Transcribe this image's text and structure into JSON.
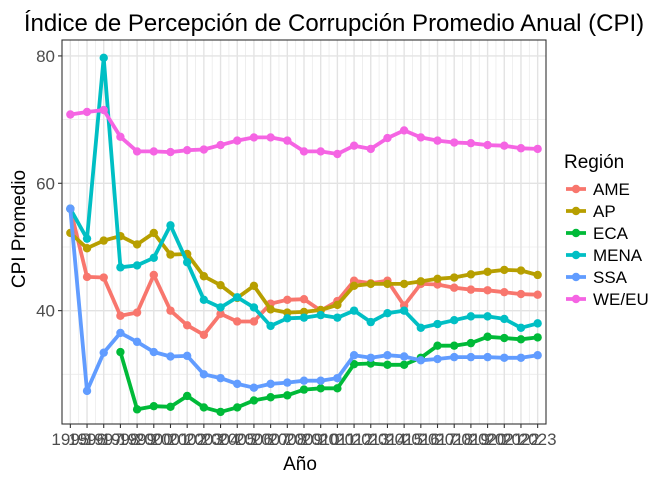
{
  "chart_data": {
    "type": "line",
    "title": "Índice de Percepción de Corrupción Promedio Anual (CPI)",
    "xlabel": "Año",
    "ylabel": "CPI Promedio",
    "legend_title": "Región",
    "legend_position": "right",
    "grid": true,
    "xlim": [
      1994.5,
      2023.5
    ],
    "ylim": [
      22.2,
      82.5
    ],
    "x": [
      1995,
      1996,
      1997,
      1998,
      1999,
      2000,
      2001,
      2002,
      2003,
      2004,
      2005,
      2006,
      2007,
      2008,
      2009,
      2010,
      2011,
      2012,
      2013,
      2014,
      2015,
      2016,
      2017,
      2018,
      2019,
      2020,
      2021,
      2022,
      2023
    ],
    "x_tick_labels": [
      "1995",
      "1996",
      "1997",
      "1998",
      "1999",
      "2000",
      "2001",
      "2002",
      "2003",
      "2004",
      "2005",
      "2006",
      "2007",
      "2008",
      "2009",
      "2010",
      "2011",
      "2012",
      "2013",
      "2014",
      "2015",
      "2016",
      "2017",
      "2018",
      "2019",
      "2020",
      "2021",
      "2022",
      "2023"
    ],
    "y_ticks": [
      40,
      60,
      80
    ],
    "y_tick_labels": [
      "40",
      "60",
      "80"
    ],
    "series": [
      {
        "name": "AME",
        "color": "#F8766D",
        "values": [
          56.0,
          45.3,
          45.2,
          39.2,
          39.7,
          45.6,
          40.0,
          37.7,
          36.2,
          39.5,
          38.3,
          38.3,
          41.1,
          41.7,
          41.8,
          40.0,
          41.5,
          44.7,
          44.3,
          44.7,
          40.8,
          44.2,
          44.1,
          43.6,
          43.3,
          43.2,
          42.9,
          42.6,
          42.5
        ]
      },
      {
        "name": "AP",
        "color": "#B79F00",
        "values": [
          52.2,
          49.8,
          51.0,
          51.7,
          50.4,
          52.2,
          48.8,
          48.9,
          45.4,
          44.0,
          42.0,
          43.9,
          40.2,
          39.7,
          39.8,
          40.1,
          40.9,
          43.9,
          44.2,
          44.2,
          44.2,
          44.6,
          45.0,
          45.2,
          45.7,
          46.1,
          46.4,
          46.3,
          45.6
        ]
      },
      {
        "name": "ECA",
        "color": "#00BA38",
        "values": [
          null,
          null,
          null,
          33.5,
          24.5,
          25.0,
          24.9,
          26.6,
          24.8,
          24.1,
          24.8,
          25.9,
          26.4,
          26.7,
          27.6,
          27.8,
          27.8,
          31.6,
          31.7,
          31.5,
          31.5,
          32.6,
          34.5,
          34.5,
          34.9,
          35.9,
          35.7,
          35.5,
          35.8
        ]
      },
      {
        "name": "MENA",
        "color": "#00BFC4",
        "values": [
          56.0,
          51.3,
          79.7,
          46.8,
          47.1,
          48.3,
          53.4,
          47.6,
          41.7,
          40.5,
          42.1,
          40.5,
          37.6,
          38.8,
          38.9,
          39.3,
          38.9,
          40.0,
          38.2,
          39.6,
          40.0,
          37.3,
          37.9,
          38.5,
          39.1,
          39.1,
          38.7,
          37.3,
          38.0
        ]
      },
      {
        "name": "SSA",
        "color": "#619CFF",
        "values": [
          56.0,
          27.4,
          33.4,
          36.5,
          35.1,
          33.5,
          32.8,
          32.9,
          30.0,
          29.4,
          28.5,
          27.9,
          28.5,
          28.7,
          29.0,
          29.0,
          29.4,
          33.0,
          32.6,
          33.0,
          32.8,
          32.2,
          32.4,
          32.7,
          32.7,
          32.7,
          32.6,
          32.6,
          33.0
        ]
      },
      {
        "name": "WE/EU",
        "color": "#F564E3",
        "values": [
          70.8,
          71.2,
          71.5,
          67.3,
          65.0,
          65.0,
          64.9,
          65.2,
          65.3,
          66.0,
          66.7,
          67.2,
          67.2,
          66.7,
          65.0,
          65.0,
          64.6,
          65.9,
          65.4,
          67.1,
          68.3,
          67.2,
          66.7,
          66.4,
          66.3,
          66.0,
          65.9,
          65.5,
          65.4
        ]
      }
    ]
  }
}
